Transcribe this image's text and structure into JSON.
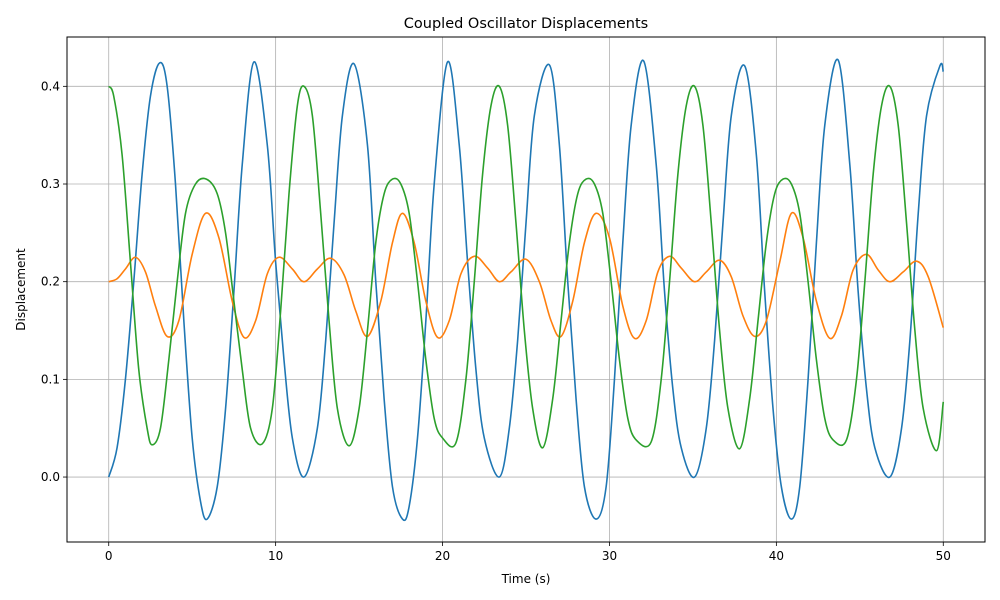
{
  "chart_data": {
    "type": "line",
    "title": "Coupled Oscillator Displacements",
    "xlabel": "Time (s)",
    "ylabel": "Displacement",
    "xlim": [
      -2.5,
      52.5
    ],
    "ylim": [
      -0.0665,
      0.4505
    ],
    "xticks": [
      0,
      10,
      20,
      30,
      40,
      50
    ],
    "yticks": [
      0.0,
      0.1,
      0.2,
      0.3,
      0.4
    ],
    "xtick_labels": [
      "0",
      "10",
      "20",
      "30",
      "40",
      "50"
    ],
    "ytick_labels": [
      "0.0",
      "0.1",
      "0.2",
      "0.3",
      "0.4"
    ],
    "grid": true,
    "legend": "none",
    "series": [
      {
        "color": "#1f77b4",
        "x": [
          0.0,
          0.5,
          1.0,
          1.5,
          2.0,
          2.5,
          3.05,
          3.5,
          4.0,
          4.5,
          5.0,
          5.5,
          5.9,
          6.5,
          7.0,
          7.5,
          8.0,
          8.7,
          9.5,
          10.0,
          10.5,
          11.0,
          11.7,
          12.5,
          13.0,
          13.5,
          14.0,
          14.7,
          15.5,
          16.0,
          16.5,
          17.0,
          17.6,
          18.0,
          18.5,
          19.0,
          19.5,
          20.3,
          21.0,
          21.5,
          22.0,
          22.5,
          23.4,
          24.0,
          24.5,
          25.0,
          25.5,
          26.4,
          27.0,
          27.5,
          28.0,
          28.5,
          29.2,
          29.8,
          30.3,
          30.8,
          31.3,
          32.05,
          32.8,
          33.3,
          33.8,
          34.3,
          35.1,
          35.8,
          36.3,
          36.8,
          37.3,
          38.1,
          38.8,
          39.3,
          39.8,
          40.3,
          40.9,
          41.4,
          41.9,
          42.4,
          42.9,
          43.7,
          44.4,
          44.9,
          45.4,
          45.9,
          46.8,
          47.5,
          48.0,
          48.5,
          49.0,
          49.8,
          50.0
        ],
        "y": [
          0.0,
          0.03,
          0.1,
          0.2,
          0.31,
          0.39,
          0.424,
          0.4,
          0.3,
          0.16,
          0.04,
          -0.025,
          -0.043,
          -0.01,
          0.07,
          0.19,
          0.32,
          0.425,
          0.34,
          0.22,
          0.12,
          0.04,
          0.0,
          0.05,
          0.14,
          0.26,
          0.37,
          0.423,
          0.34,
          0.2,
          0.08,
          -0.01,
          -0.043,
          -0.03,
          0.04,
          0.16,
          0.3,
          0.425,
          0.34,
          0.22,
          0.11,
          0.04,
          0.0,
          0.05,
          0.14,
          0.26,
          0.37,
          0.422,
          0.34,
          0.2,
          0.08,
          -0.01,
          -0.043,
          -0.01,
          0.1,
          0.24,
          0.36,
          0.426,
          0.32,
          0.19,
          0.09,
          0.03,
          0.0,
          0.05,
          0.14,
          0.26,
          0.37,
          0.421,
          0.33,
          0.19,
          0.07,
          -0.01,
          -0.043,
          -0.01,
          0.1,
          0.24,
          0.36,
          0.427,
          0.32,
          0.19,
          0.09,
          0.03,
          0.0,
          0.05,
          0.14,
          0.27,
          0.37,
          0.421,
          0.415
        ]
      },
      {
        "color": "#ff7f0e",
        "x": [
          0.0,
          0.5,
          1.0,
          1.6,
          2.2,
          2.8,
          3.5,
          4.2,
          5.0,
          5.8,
          6.6,
          7.4,
          8.1,
          8.8,
          9.5,
          10.2,
          11.0,
          11.7,
          12.5,
          13.3,
          14.1,
          14.8,
          15.5,
          16.3,
          17.0,
          17.6,
          18.3,
          19.0,
          19.7,
          20.4,
          21.1,
          21.9,
          22.7,
          23.4,
          24.1,
          25.0,
          25.8,
          26.5,
          27.1,
          27.8,
          28.5,
          29.2,
          30.0,
          30.8,
          31.5,
          32.2,
          32.9,
          33.6,
          34.3,
          35.1,
          35.8,
          36.6,
          37.3,
          38.0,
          38.7,
          39.4,
          40.2,
          40.9,
          41.6,
          42.4,
          43.2,
          43.9,
          44.6,
          45.4,
          46.1,
          46.8,
          47.6,
          48.4,
          49.1,
          50.0
        ],
        "y": [
          0.2,
          0.203,
          0.213,
          0.225,
          0.21,
          0.175,
          0.144,
          0.16,
          0.228,
          0.27,
          0.245,
          0.18,
          0.143,
          0.16,
          0.208,
          0.225,
          0.213,
          0.2,
          0.213,
          0.224,
          0.207,
          0.17,
          0.144,
          0.18,
          0.24,
          0.27,
          0.24,
          0.18,
          0.143,
          0.16,
          0.208,
          0.226,
          0.214,
          0.2,
          0.21,
          0.223,
          0.2,
          0.16,
          0.144,
          0.18,
          0.24,
          0.27,
          0.245,
          0.175,
          0.142,
          0.16,
          0.21,
          0.226,
          0.214,
          0.2,
          0.21,
          0.222,
          0.205,
          0.165,
          0.144,
          0.16,
          0.22,
          0.27,
          0.245,
          0.18,
          0.142,
          0.165,
          0.212,
          0.228,
          0.212,
          0.2,
          0.21,
          0.221,
          0.205,
          0.153
        ]
      },
      {
        "color": "#2ca02c",
        "x": [
          0.0,
          0.3,
          0.8,
          1.3,
          1.8,
          2.3,
          2.6,
          3.1,
          3.6,
          4.1,
          4.6,
          5.2,
          5.85,
          6.5,
          7.0,
          7.5,
          8.0,
          8.5,
          9.2,
          9.8,
          10.3,
          10.8,
          11.3,
          11.7,
          12.2,
          12.7,
          13.2,
          13.7,
          14.4,
          15.0,
          15.5,
          16.0,
          16.5,
          17.0,
          17.5,
          18.0,
          18.5,
          19.0,
          19.5,
          20.0,
          20.8,
          21.4,
          21.9,
          22.4,
          22.9,
          23.4,
          23.9,
          24.4,
          24.9,
          25.4,
          26.0,
          26.6,
          27.1,
          27.6,
          28.1,
          28.6,
          29.1,
          29.6,
          30.1,
          30.6,
          31.1,
          31.6,
          32.5,
          33.1,
          33.6,
          34.1,
          34.6,
          35.1,
          35.6,
          36.1,
          36.6,
          37.1,
          37.8,
          38.4,
          38.9,
          39.4,
          39.9,
          40.4,
          40.9,
          41.4,
          41.9,
          42.4,
          42.9,
          43.4,
          44.2,
          44.8,
          45.3,
          45.8,
          46.3,
          46.8,
          47.3,
          47.8,
          48.3,
          48.8,
          49.6,
          50.0
        ],
        "y": [
          0.4,
          0.39,
          0.33,
          0.22,
          0.11,
          0.05,
          0.033,
          0.05,
          0.12,
          0.2,
          0.27,
          0.3,
          0.305,
          0.29,
          0.25,
          0.18,
          0.11,
          0.05,
          0.034,
          0.07,
          0.17,
          0.29,
          0.38,
          0.4,
          0.37,
          0.27,
          0.16,
          0.07,
          0.032,
          0.07,
          0.15,
          0.24,
          0.29,
          0.305,
          0.3,
          0.27,
          0.2,
          0.12,
          0.06,
          0.04,
          0.035,
          0.1,
          0.2,
          0.31,
          0.38,
          0.4,
          0.36,
          0.26,
          0.15,
          0.07,
          0.03,
          0.08,
          0.16,
          0.24,
          0.29,
          0.305,
          0.3,
          0.27,
          0.2,
          0.12,
          0.06,
          0.038,
          0.036,
          0.1,
          0.2,
          0.31,
          0.38,
          0.4,
          0.36,
          0.26,
          0.15,
          0.07,
          0.029,
          0.08,
          0.16,
          0.24,
          0.29,
          0.305,
          0.3,
          0.27,
          0.2,
          0.12,
          0.06,
          0.038,
          0.038,
          0.1,
          0.2,
          0.31,
          0.38,
          0.4,
          0.36,
          0.26,
          0.15,
          0.07,
          0.027,
          0.077
        ]
      }
    ]
  }
}
